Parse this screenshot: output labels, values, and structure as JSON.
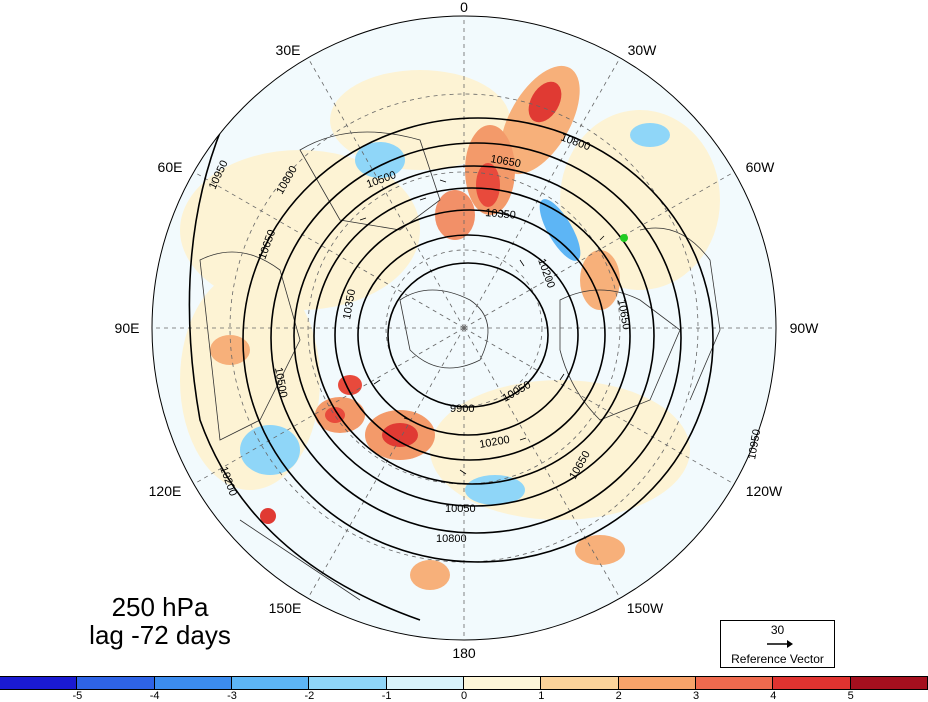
{
  "title": {
    "line1": "250 hPa",
    "line2": "lag -72 days"
  },
  "longitude_labels": [
    "0",
    "30W",
    "60W",
    "90W",
    "120W",
    "150W",
    "180",
    "150E",
    "120E",
    "90E",
    "60E",
    "30E"
  ],
  "contour_labels": [
    "10950",
    "10800",
    "10650",
    "10500",
    "10350",
    "10200",
    "10050",
    "9900",
    "10800",
    "10650",
    "10350",
    "10200",
    "10500",
    "10650",
    "10050",
    "10950",
    "10800",
    "10650",
    "10200"
  ],
  "reference_vector": {
    "value": "30",
    "label": "Reference Vector"
  },
  "colorbar": {
    "colors": [
      "#1a1ad2",
      "#2e63e6",
      "#3c8cee",
      "#5db5f5",
      "#8fd6f8",
      "#d8f3fb",
      "#fdf6d8",
      "#fbd39a",
      "#f7a36a",
      "#ef6a4e",
      "#e03330",
      "#a50f1e"
    ],
    "labels": [
      "-5",
      "-4",
      "-3",
      "-2",
      "-1",
      "0",
      "1",
      "2",
      "3",
      "4",
      "5"
    ]
  },
  "marker": {
    "color": "#22cc22"
  }
}
